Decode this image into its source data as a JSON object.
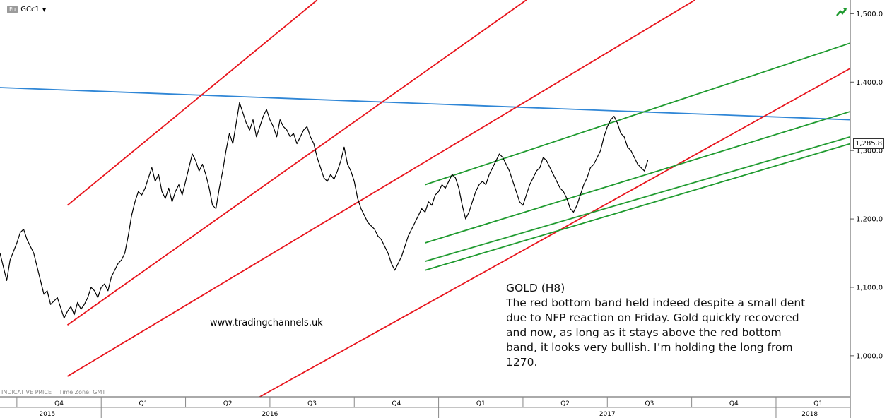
{
  "header": {
    "instrument_badge": "Fu",
    "symbol": "GCc1",
    "dropdown_icon": "caret-down-icon",
    "trend_icon": "bullish-arrow-icon"
  },
  "annotation": {
    "title": "GOLD (H8)",
    "body": "The red bottom band held indeed despite a small dent due to NFP reaction on Friday. Gold quickly recovered and now, as long as it stays above the red bottom band, it looks very bullish. I’m holding the long from 1270."
  },
  "watermark": "www.tradingchannels.uk",
  "footer": {
    "indicative": "INDICATIVE PRICE",
    "timezone": "Time Zone: GMT"
  },
  "colors": {
    "price": "#000000",
    "red_channel": "#e8141c",
    "green_channel": "#1e9a2e",
    "blue_trend": "#2f86d6"
  },
  "chart_data": {
    "type": "line",
    "symbol": "GCc1",
    "last_price_label": "1,285.8",
    "last_price": 1285.8,
    "ylim": [
      940,
      1520
    ],
    "xlim": [
      2015.7,
      2018.22
    ],
    "y_ticks": [
      {
        "value": 1000,
        "label": "1,000.0"
      },
      {
        "value": 1100,
        "label": "1,100.0"
      },
      {
        "value": 1200,
        "label": "1,200.0"
      },
      {
        "value": 1300,
        "label": "1,300.0"
      },
      {
        "value": 1400,
        "label": "1,400.0"
      },
      {
        "value": 1500,
        "label": "1,500.0"
      }
    ],
    "x_quarters": [
      {
        "label": "Q4",
        "x": 2015.875
      },
      {
        "label": "Q1",
        "x": 2016.125
      },
      {
        "label": "Q2",
        "x": 2016.375
      },
      {
        "label": "Q3",
        "x": 2016.625
      },
      {
        "label": "Q4",
        "x": 2016.875
      },
      {
        "label": "Q1",
        "x": 2017.125
      },
      {
        "label": "Q2",
        "x": 2017.375
      },
      {
        "label": "Q3",
        "x": 2017.625
      },
      {
        "label": "Q4",
        "x": 2017.875
      },
      {
        "label": "Q1",
        "x": 2018.125
      }
    ],
    "x_years": [
      {
        "label": "2015",
        "x": 2015.84
      },
      {
        "label": "2016",
        "x": 2016.5
      },
      {
        "label": "2017",
        "x": 2017.5
      },
      {
        "label": "2018",
        "x": 2018.1
      }
    ],
    "price_series": [
      [
        2015.7,
        1150
      ],
      [
        2015.72,
        1110
      ],
      [
        2015.73,
        1140
      ],
      [
        2015.75,
        1165
      ],
      [
        2015.76,
        1180
      ],
      [
        2015.77,
        1185
      ],
      [
        2015.78,
        1170
      ],
      [
        2015.8,
        1150
      ],
      [
        2015.81,
        1130
      ],
      [
        2015.82,
        1110
      ],
      [
        2015.83,
        1090
      ],
      [
        2015.84,
        1095
      ],
      [
        2015.85,
        1075
      ],
      [
        2015.87,
        1085
      ],
      [
        2015.88,
        1070
      ],
      [
        2015.89,
        1055
      ],
      [
        2015.9,
        1065
      ],
      [
        2015.91,
        1072
      ],
      [
        2015.92,
        1060
      ],
      [
        2015.93,
        1078
      ],
      [
        2015.94,
        1068
      ],
      [
        2015.95,
        1075
      ],
      [
        2015.96,
        1085
      ],
      [
        2015.97,
        1100
      ],
      [
        2015.98,
        1095
      ],
      [
        2015.99,
        1085
      ],
      [
        2016.0,
        1100
      ],
      [
        2016.01,
        1105
      ],
      [
        2016.02,
        1095
      ],
      [
        2016.03,
        1115
      ],
      [
        2016.04,
        1125
      ],
      [
        2016.05,
        1135
      ],
      [
        2016.06,
        1140
      ],
      [
        2016.07,
        1150
      ],
      [
        2016.08,
        1175
      ],
      [
        2016.09,
        1205
      ],
      [
        2016.1,
        1225
      ],
      [
        2016.11,
        1240
      ],
      [
        2016.12,
        1235
      ],
      [
        2016.13,
        1245
      ],
      [
        2016.14,
        1260
      ],
      [
        2016.15,
        1275
      ],
      [
        2016.16,
        1255
      ],
      [
        2016.17,
        1265
      ],
      [
        2016.18,
        1240
      ],
      [
        2016.19,
        1230
      ],
      [
        2016.2,
        1245
      ],
      [
        2016.21,
        1225
      ],
      [
        2016.22,
        1240
      ],
      [
        2016.23,
        1250
      ],
      [
        2016.24,
        1235
      ],
      [
        2016.25,
        1255
      ],
      [
        2016.26,
        1275
      ],
      [
        2016.27,
        1295
      ],
      [
        2016.28,
        1285
      ],
      [
        2016.29,
        1270
      ],
      [
        2016.3,
        1280
      ],
      [
        2016.31,
        1265
      ],
      [
        2016.32,
        1245
      ],
      [
        2016.33,
        1220
      ],
      [
        2016.34,
        1215
      ],
      [
        2016.35,
        1245
      ],
      [
        2016.36,
        1270
      ],
      [
        2016.37,
        1300
      ],
      [
        2016.38,
        1325
      ],
      [
        2016.39,
        1310
      ],
      [
        2016.4,
        1340
      ],
      [
        2016.41,
        1370
      ],
      [
        2016.42,
        1355
      ],
      [
        2016.43,
        1340
      ],
      [
        2016.44,
        1330
      ],
      [
        2016.45,
        1345
      ],
      [
        2016.46,
        1320
      ],
      [
        2016.47,
        1335
      ],
      [
        2016.48,
        1350
      ],
      [
        2016.49,
        1360
      ],
      [
        2016.5,
        1345
      ],
      [
        2016.51,
        1335
      ],
      [
        2016.52,
        1320
      ],
      [
        2016.53,
        1345
      ],
      [
        2016.54,
        1335
      ],
      [
        2016.55,
        1330
      ],
      [
        2016.56,
        1320
      ],
      [
        2016.57,
        1325
      ],
      [
        2016.58,
        1310
      ],
      [
        2016.59,
        1320
      ],
      [
        2016.6,
        1330
      ],
      [
        2016.61,
        1335
      ],
      [
        2016.62,
        1320
      ],
      [
        2016.63,
        1310
      ],
      [
        2016.64,
        1290
      ],
      [
        2016.65,
        1275
      ],
      [
        2016.66,
        1260
      ],
      [
        2016.67,
        1255
      ],
      [
        2016.68,
        1265
      ],
      [
        2016.69,
        1258
      ],
      [
        2016.7,
        1270
      ],
      [
        2016.71,
        1285
      ],
      [
        2016.72,
        1305
      ],
      [
        2016.73,
        1280
      ],
      [
        2016.74,
        1270
      ],
      [
        2016.75,
        1255
      ],
      [
        2016.76,
        1230
      ],
      [
        2016.77,
        1215
      ],
      [
        2016.78,
        1205
      ],
      [
        2016.79,
        1195
      ],
      [
        2016.8,
        1190
      ],
      [
        2016.81,
        1185
      ],
      [
        2016.82,
        1175
      ],
      [
        2016.83,
        1170
      ],
      [
        2016.84,
        1160
      ],
      [
        2016.85,
        1150
      ],
      [
        2016.86,
        1135
      ],
      [
        2016.87,
        1125
      ],
      [
        2016.88,
        1135
      ],
      [
        2016.89,
        1145
      ],
      [
        2016.9,
        1160
      ],
      [
        2016.91,
        1175
      ],
      [
        2016.92,
        1185
      ],
      [
        2016.93,
        1195
      ],
      [
        2016.94,
        1205
      ],
      [
        2016.95,
        1215
      ],
      [
        2016.96,
        1210
      ],
      [
        2016.97,
        1225
      ],
      [
        2016.98,
        1220
      ],
      [
        2016.99,
        1235
      ],
      [
        2017.0,
        1240
      ],
      [
        2017.01,
        1250
      ],
      [
        2017.02,
        1245
      ],
      [
        2017.03,
        1255
      ],
      [
        2017.04,
        1265
      ],
      [
        2017.05,
        1260
      ],
      [
        2017.06,
        1245
      ],
      [
        2017.07,
        1220
      ],
      [
        2017.08,
        1200
      ],
      [
        2017.09,
        1210
      ],
      [
        2017.1,
        1225
      ],
      [
        2017.11,
        1240
      ],
      [
        2017.12,
        1250
      ],
      [
        2017.13,
        1255
      ],
      [
        2017.14,
        1250
      ],
      [
        2017.15,
        1265
      ],
      [
        2017.16,
        1275
      ],
      [
        2017.17,
        1285
      ],
      [
        2017.18,
        1295
      ],
      [
        2017.19,
        1290
      ],
      [
        2017.2,
        1280
      ],
      [
        2017.21,
        1270
      ],
      [
        2017.22,
        1255
      ],
      [
        2017.23,
        1240
      ],
      [
        2017.24,
        1225
      ],
      [
        2017.25,
        1220
      ],
      [
        2017.26,
        1235
      ],
      [
        2017.27,
        1250
      ],
      [
        2017.28,
        1260
      ],
      [
        2017.29,
        1270
      ],
      [
        2017.3,
        1275
      ],
      [
        2017.31,
        1290
      ],
      [
        2017.32,
        1285
      ],
      [
        2017.33,
        1275
      ],
      [
        2017.34,
        1265
      ],
      [
        2017.35,
        1255
      ],
      [
        2017.36,
        1245
      ],
      [
        2017.37,
        1240
      ],
      [
        2017.38,
        1230
      ],
      [
        2017.39,
        1215
      ],
      [
        2017.4,
        1210
      ],
      [
        2017.41,
        1220
      ],
      [
        2017.42,
        1235
      ],
      [
        2017.43,
        1250
      ],
      [
        2017.44,
        1260
      ],
      [
        2017.45,
        1275
      ],
      [
        2017.46,
        1280
      ],
      [
        2017.47,
        1290
      ],
      [
        2017.48,
        1300
      ],
      [
        2017.49,
        1320
      ],
      [
        2017.5,
        1335
      ],
      [
        2017.51,
        1345
      ],
      [
        2017.52,
        1350
      ],
      [
        2017.53,
        1340
      ],
      [
        2017.54,
        1325
      ],
      [
        2017.55,
        1320
      ],
      [
        2017.56,
        1305
      ],
      [
        2017.57,
        1300
      ],
      [
        2017.58,
        1290
      ],
      [
        2017.59,
        1280
      ],
      [
        2017.6,
        1275
      ],
      [
        2017.61,
        1270
      ],
      [
        2017.62,
        1285.8
      ]
    ],
    "trendlines": [
      {
        "id": "blue-resistance",
        "color": "blue",
        "points": [
          [
            2015.7,
            1392
          ],
          [
            2018.22,
            1345
          ]
        ]
      },
      {
        "id": "red-upper",
        "color": "red",
        "points": [
          [
            2015.9,
            1220
          ],
          [
            2016.64,
            1520
          ]
        ]
      },
      {
        "id": "red-upper-mid",
        "color": "red",
        "points": [
          [
            2015.9,
            1045
          ],
          [
            2017.26,
            1520
          ]
        ]
      },
      {
        "id": "red-lower-mid",
        "color": "red",
        "points": [
          [
            2015.9,
            970
          ],
          [
            2017.76,
            1520
          ]
        ]
      },
      {
        "id": "red-bottom",
        "color": "red",
        "points": [
          [
            2016.47,
            940
          ],
          [
            2018.22,
            1420
          ]
        ]
      },
      {
        "id": "green-upper",
        "color": "green",
        "points": [
          [
            2016.96,
            1250
          ],
          [
            2018.22,
            1457
          ]
        ]
      },
      {
        "id": "green-mid",
        "color": "green",
        "points": [
          [
            2016.96,
            1165
          ],
          [
            2018.22,
            1357
          ]
        ]
      },
      {
        "id": "green-lower-1",
        "color": "green",
        "points": [
          [
            2016.96,
            1138
          ],
          [
            2018.22,
            1320
          ]
        ]
      },
      {
        "id": "green-lower-2",
        "color": "green",
        "points": [
          [
            2016.96,
            1125
          ],
          [
            2018.22,
            1310
          ]
        ]
      }
    ]
  }
}
